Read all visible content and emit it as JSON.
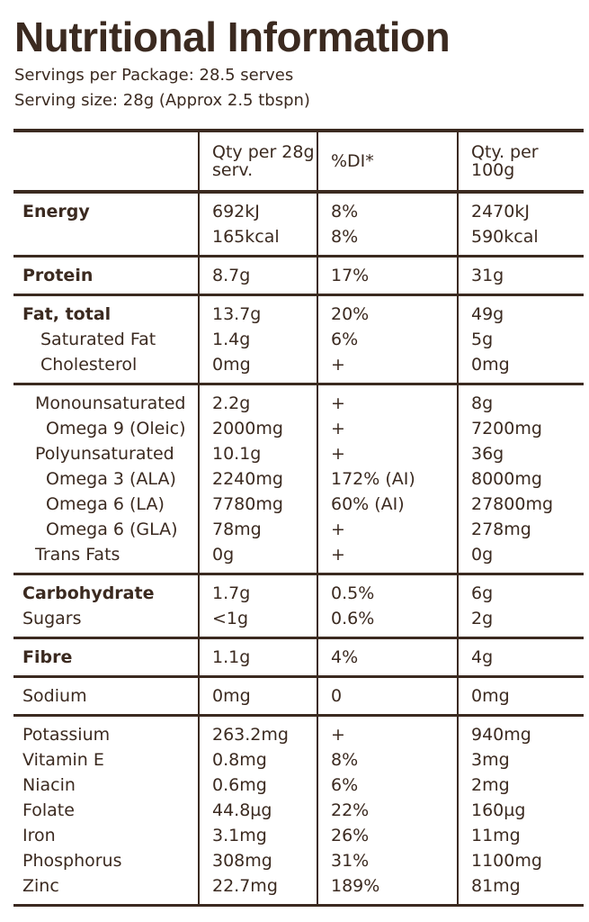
{
  "header": {
    "title": "Nutritional Information",
    "servings": "Servings per Package: 28.5 serves",
    "serving_size": "Serving size: 28g (Approx 2.5 tbspn)"
  },
  "table": {
    "columns": [
      "Qty per 28g serv.",
      "%DI*",
      "Qty. per 100g"
    ],
    "groups": [
      {
        "rows": [
          {
            "label": "Energy",
            "values": [
              "692kJ",
              "8%",
              "2470kJ"
            ]
          },
          {
            "values": [
              "165kcal",
              "8%",
              "590kcal"
            ]
          }
        ]
      },
      {
        "rows": [
          {
            "label": "Protein",
            "values": [
              "8.7g",
              "17%",
              "31g"
            ]
          }
        ]
      },
      {
        "rows": [
          {
            "label": "Fat, total",
            "values": [
              "13.7g",
              "20%",
              "49g"
            ]
          },
          {
            "label": "Saturated Fat",
            "values": [
              "1.4g",
              "6%",
              "5g"
            ]
          },
          {
            "label": "Cholesterol",
            "values": [
              "0mg",
              "+",
              "0mg"
            ]
          }
        ]
      },
      {
        "rows": [
          {
            "label": "Monounsaturated",
            "values": [
              "2.2g",
              "+",
              "8g"
            ]
          },
          {
            "label": "Omega 9 (Oleic)",
            "values": [
              "2000mg",
              "+",
              "7200mg"
            ]
          },
          {
            "label": "Polyunsaturated",
            "values": [
              "10.1g",
              "+",
              "36g"
            ]
          },
          {
            "label": "Omega 3 (ALA)",
            "values": [
              "2240mg",
              "172% (AI)",
              "8000mg"
            ]
          },
          {
            "label": "Omega 6 (LA)",
            "values": [
              "7780mg",
              "60% (AI)",
              "27800mg"
            ]
          },
          {
            "label": "Omega 6 (GLA)",
            "values": [
              "78mg",
              "+",
              "278mg"
            ]
          },
          {
            "label": "Trans Fats",
            "values": [
              "0g",
              "+",
              "0g"
            ]
          }
        ]
      },
      {
        "rows": [
          {
            "label": "Carbohydrate",
            "values": [
              "1.7g",
              "0.5%",
              "6g"
            ]
          },
          {
            "label": "Sugars",
            "values": [
              "<1g",
              "0.6%",
              "2g"
            ]
          }
        ]
      },
      {
        "rows": [
          {
            "label": "Fibre",
            "values": [
              "1.1g",
              "4%",
              "4g"
            ]
          }
        ]
      },
      {
        "rows": [
          {
            "label": "Sodium",
            "values": [
              "0mg",
              "0",
              "0mg"
            ]
          }
        ]
      },
      {
        "rows": [
          {
            "label": "Potassium",
            "values": [
              "263.2mg",
              "+",
              "940mg"
            ]
          },
          {
            "label": "Vitamin E",
            "values": [
              "0.8mg",
              "8%",
              "3mg"
            ]
          },
          {
            "label": "Niacin",
            "values": [
              "0.6mg",
              "6%",
              "2mg"
            ]
          },
          {
            "label": "Folate",
            "values": [
              "44.8µg",
              "22%",
              "160µg"
            ]
          },
          {
            "label": "Iron",
            "values": [
              "3.1mg",
              "26%",
              "11mg"
            ]
          },
          {
            "label": "Phosphorus",
            "values": [
              "308mg",
              "31%",
              "1100mg"
            ]
          },
          {
            "label": "Zinc",
            "values": [
              "22.7mg",
              "189%",
              "81mg"
            ]
          }
        ]
      }
    ]
  }
}
